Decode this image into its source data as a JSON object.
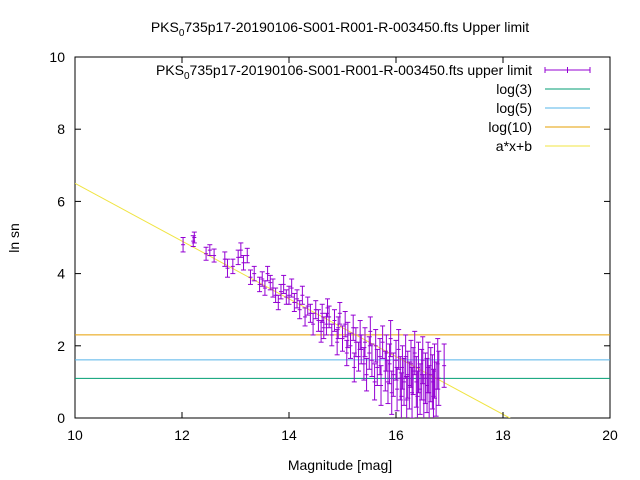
{
  "chart_data": {
    "type": "scatter",
    "title": {
      "prefix": "PKS",
      "sub": "0",
      "suffix": "735p17-20190106-S001-R001-R-003450.fts Upper limit"
    },
    "xlabel": "Magnitude [mag]",
    "ylabel": "ln sn",
    "xlim": [
      10,
      20
    ],
    "ylim": [
      0,
      10
    ],
    "xticks": [
      "10",
      "12",
      "14",
      "16",
      "18",
      "20"
    ],
    "yticks": [
      "0",
      "2",
      "4",
      "6",
      "8",
      "10"
    ],
    "grid": false,
    "legend_position": "top-right",
    "legend": [
      {
        "prefix": "PKS",
        "sub": "0",
        "suffix": "735p17-20190106-S001-R001-R-003450.fts upper limit",
        "color": "#9400d3",
        "style": "errorbar"
      },
      {
        "label": "log(3)",
        "color": "#009e73",
        "style": "line"
      },
      {
        "label": "log(5)",
        "color": "#56b4e9",
        "style": "line"
      },
      {
        "label": "log(10)",
        "color": "#e69f00",
        "style": "line"
      },
      {
        "label": "a*x+b",
        "color": "#f0e442",
        "style": "line"
      }
    ],
    "hlines": [
      {
        "name": "log(3)",
        "y": 1.0986
      },
      {
        "name": "log(5)",
        "y": 1.6094
      },
      {
        "name": "log(10)",
        "y": 2.3026
      }
    ],
    "fit_line": {
      "name": "a*x+b",
      "slope": -0.8,
      "intercept": 14.5
    },
    "points": [
      [
        12.02,
        4.8,
        0.2
      ],
      [
        12.21,
        4.9,
        0.15
      ],
      [
        12.23,
        5.0,
        0.15
      ],
      [
        12.45,
        4.55,
        0.18
      ],
      [
        12.52,
        4.65,
        0.15
      ],
      [
        12.6,
        4.5,
        0.18
      ],
      [
        12.8,
        4.4,
        0.2
      ],
      [
        12.85,
        4.15,
        0.25
      ],
      [
        12.95,
        4.2,
        0.2
      ],
      [
        13.05,
        4.45,
        0.2
      ],
      [
        13.1,
        4.65,
        0.2
      ],
      [
        13.15,
        4.3,
        0.2
      ],
      [
        13.22,
        4.5,
        0.2
      ],
      [
        13.28,
        3.9,
        0.2
      ],
      [
        13.35,
        4.0,
        0.2
      ],
      [
        13.45,
        3.7,
        0.2
      ],
      [
        13.5,
        3.85,
        0.2
      ],
      [
        13.55,
        3.6,
        0.2
      ],
      [
        13.6,
        4.0,
        0.2
      ],
      [
        13.65,
        3.75,
        0.2
      ],
      [
        13.7,
        3.6,
        0.25
      ],
      [
        13.75,
        3.4,
        0.2
      ],
      [
        13.8,
        3.2,
        0.2
      ],
      [
        13.85,
        3.5,
        0.2
      ],
      [
        13.9,
        3.7,
        0.25
      ],
      [
        13.95,
        3.35,
        0.2
      ],
      [
        14.0,
        3.4,
        0.25
      ],
      [
        14.05,
        3.6,
        0.25
      ],
      [
        14.1,
        3.2,
        0.25
      ],
      [
        14.15,
        3.3,
        0.25
      ],
      [
        14.2,
        3.0,
        0.25
      ],
      [
        14.25,
        3.4,
        0.25
      ],
      [
        14.3,
        2.8,
        0.25
      ],
      [
        14.35,
        3.1,
        0.25
      ],
      [
        14.4,
        2.9,
        0.25
      ],
      [
        14.45,
        2.6,
        0.3
      ],
      [
        14.5,
        3.0,
        0.25
      ],
      [
        14.55,
        2.7,
        0.3
      ],
      [
        14.6,
        2.4,
        0.3
      ],
      [
        14.62,
        2.9,
        0.25
      ],
      [
        14.65,
        2.5,
        0.3
      ],
      [
        14.7,
        2.6,
        0.3
      ],
      [
        14.72,
        3.05,
        0.25
      ],
      [
        14.75,
        2.8,
        0.3
      ],
      [
        14.8,
        2.3,
        0.3
      ],
      [
        14.85,
        2.7,
        0.3
      ],
      [
        14.9,
        2.1,
        0.35
      ],
      [
        14.92,
        2.5,
        0.3
      ],
      [
        14.95,
        2.9,
        0.3
      ],
      [
        15.0,
        2.2,
        0.35
      ],
      [
        15.05,
        2.6,
        0.35
      ],
      [
        15.08,
        1.8,
        0.35
      ],
      [
        15.1,
        2.3,
        0.35
      ],
      [
        15.15,
        2.0,
        0.35
      ],
      [
        15.2,
        2.5,
        0.35
      ],
      [
        15.22,
        1.4,
        0.4
      ],
      [
        15.25,
        2.1,
        0.4
      ],
      [
        15.3,
        1.7,
        0.4
      ],
      [
        15.33,
        2.3,
        0.4
      ],
      [
        15.35,
        1.9,
        0.4
      ],
      [
        15.4,
        1.5,
        0.45
      ],
      [
        15.42,
        2.1,
        0.4
      ],
      [
        15.45,
        1.2,
        0.45
      ],
      [
        15.5,
        1.8,
        0.45
      ],
      [
        15.52,
        2.4,
        0.4
      ],
      [
        15.55,
        1.6,
        0.45
      ],
      [
        15.6,
        1.0,
        0.5
      ],
      [
        15.62,
        2.0,
        0.45
      ],
      [
        15.65,
        1.4,
        0.5
      ],
      [
        15.7,
        1.7,
        0.5
      ],
      [
        15.72,
        0.9,
        0.55
      ],
      [
        15.75,
        2.1,
        0.45
      ],
      [
        15.8,
        1.3,
        0.55
      ],
      [
        15.82,
        1.8,
        0.5
      ],
      [
        15.85,
        1.0,
        0.6
      ],
      [
        15.88,
        1.5,
        0.55
      ],
      [
        15.9,
        2.2,
        0.5
      ],
      [
        15.92,
        0.7,
        0.6
      ],
      [
        15.95,
        1.2,
        0.6
      ],
      [
        16.0,
        1.6,
        0.55
      ],
      [
        16.02,
        0.8,
        0.6
      ],
      [
        16.05,
        1.9,
        0.55
      ],
      [
        16.08,
        1.1,
        0.6
      ],
      [
        16.1,
        0.6,
        0.65
      ],
      [
        16.12,
        1.4,
        0.6
      ],
      [
        16.15,
        1.0,
        0.65
      ],
      [
        16.18,
        1.7,
        0.6
      ],
      [
        16.2,
        0.5,
        0.65
      ],
      [
        16.22,
        1.2,
        0.65
      ],
      [
        16.25,
        0.9,
        0.65
      ],
      [
        16.28,
        1.5,
        0.65
      ],
      [
        16.3,
        0.7,
        0.7
      ],
      [
        16.32,
        1.3,
        0.65
      ],
      [
        16.35,
        1.8,
        0.6
      ],
      [
        16.38,
        1.0,
        0.7
      ],
      [
        16.4,
        0.6,
        0.7
      ],
      [
        16.42,
        1.4,
        0.7
      ],
      [
        16.45,
        0.8,
        0.7
      ],
      [
        16.48,
        1.2,
        0.7
      ],
      [
        16.5,
        1.6,
        0.65
      ],
      [
        16.52,
        0.5,
        0.7
      ],
      [
        16.55,
        1.1,
        0.7
      ],
      [
        16.58,
        0.9,
        0.75
      ],
      [
        16.6,
        1.4,
        0.7
      ],
      [
        16.62,
        0.7,
        0.75
      ],
      [
        16.65,
        1.2,
        0.75
      ],
      [
        16.68,
        1.0,
        0.75
      ],
      [
        16.7,
        0.6,
        0.75
      ],
      [
        16.72,
        1.3,
        0.75
      ],
      [
        16.75,
        0.8,
        0.75
      ],
      [
        16.78,
        1.5,
        0.7
      ],
      [
        16.8,
        1.1,
        0.75
      ],
      [
        16.9,
        1.45,
        0.6
      ]
    ]
  }
}
